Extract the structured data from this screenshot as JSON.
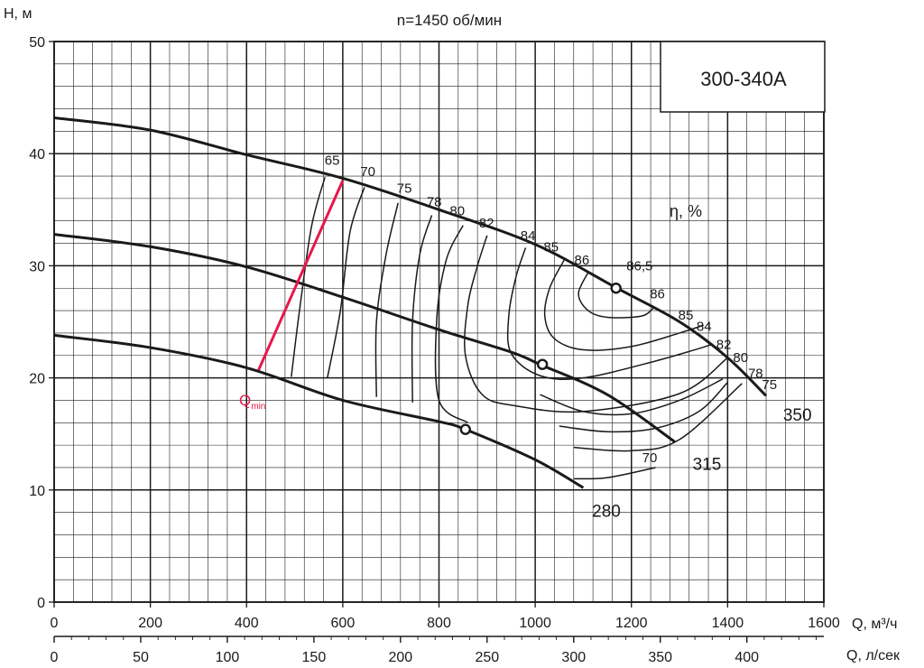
{
  "chart_data": {
    "type": "line",
    "title": "n=1450 об/мин",
    "model_label": "300-340А",
    "ylabel": "H, м",
    "xlabel": "Q, м³/ч",
    "xlabel2": "Q, л/сек",
    "efficiency_label": "η, %",
    "qmin_label": "Q",
    "qmin_sub": "min",
    "ylim": [
      0,
      50
    ],
    "xlim": [
      0,
      1600
    ],
    "x2lim": [
      0,
      444.44
    ],
    "grid": true,
    "x_ticks": [
      "0",
      "200",
      "400",
      "600",
      "800",
      "1000",
      "1200",
      "1400",
      "1600"
    ],
    "x2_ticks": [
      "0",
      "50",
      "100",
      "150",
      "200",
      "250",
      "300",
      "350",
      "400"
    ],
    "y_ticks": [
      "0",
      "10",
      "20",
      "30",
      "40",
      "50"
    ],
    "colors": {
      "curve": "#1a1a1a",
      "grid": "#1a1a1a",
      "qmin": "#e8174a"
    },
    "series": [
      {
        "name": "350",
        "points": [
          [
            0,
            43.2
          ],
          [
            200,
            42.1
          ],
          [
            400,
            39.9
          ],
          [
            600,
            37.8
          ],
          [
            800,
            35.0
          ],
          [
            1000,
            31.9
          ],
          [
            1170,
            28.0
          ],
          [
            1300,
            25.0
          ],
          [
            1400,
            21.8
          ],
          [
            1480,
            18.4
          ]
        ]
      },
      {
        "name": "315",
        "points": [
          [
            0,
            32.8
          ],
          [
            200,
            31.7
          ],
          [
            400,
            29.9
          ],
          [
            600,
            27.2
          ],
          [
            800,
            24.3
          ],
          [
            950,
            22.3
          ],
          [
            1010,
            21.2
          ],
          [
            1150,
            18.5
          ],
          [
            1290,
            14.3
          ]
        ]
      },
      {
        "name": "280",
        "points": [
          [
            0,
            23.8
          ],
          [
            200,
            22.7
          ],
          [
            400,
            20.9
          ],
          [
            600,
            18.0
          ],
          [
            800,
            16.1
          ],
          [
            855,
            15.4
          ],
          [
            1000,
            12.7
          ],
          [
            1100,
            10.2
          ]
        ]
      }
    ],
    "duty_points": [
      {
        "x": 1168,
        "y": 28.0
      },
      {
        "x": 1015,
        "y": 21.2
      },
      {
        "x": 855,
        "y": 15.4
      }
    ],
    "qmin_line": [
      [
        425,
        20.7
      ],
      [
        600,
        37.6
      ]
    ],
    "efficiency_curves": [
      {
        "label": "65",
        "points": [
          [
            563,
            37.9
          ],
          [
            535,
            33.5
          ],
          [
            510,
            26.0
          ],
          [
            493,
            20.1
          ]
        ]
      },
      {
        "label": "70",
        "points": [
          [
            645,
            37.0
          ],
          [
            615,
            33.0
          ],
          [
            595,
            26.0
          ],
          [
            568,
            20.0
          ]
        ]
      },
      {
        "label": "75",
        "points": [
          [
            715,
            35.6
          ],
          [
            690,
            31.0
          ],
          [
            670,
            25.0
          ],
          [
            670,
            18.3
          ]
        ]
      },
      {
        "label": "78",
        "points": [
          [
            785,
            34.5
          ],
          [
            760,
            31.0
          ],
          [
            745,
            25.0
          ],
          [
            745,
            17.8
          ]
        ]
      },
      {
        "label": "80",
        "points": [
          [
            850,
            33.6
          ],
          [
            815,
            30.5
          ],
          [
            795,
            25.0
          ],
          [
            800,
            18.0
          ],
          [
            860,
            16.0
          ]
        ]
      },
      {
        "label": "82",
        "points": [
          [
            900,
            32.7
          ],
          [
            880,
            30.0
          ],
          [
            860,
            26.5
          ],
          [
            855,
            22.0
          ],
          [
            890,
            18.5
          ],
          [
            960,
            17.5
          ],
          [
            1100,
            17.0
          ],
          [
            1300,
            18.6
          ],
          [
            1400,
            21.8
          ]
        ]
      },
      {
        "label": "84",
        "points": [
          [
            980,
            31.6
          ],
          [
            960,
            29.0
          ],
          [
            945,
            25.5
          ],
          [
            950,
            22.2
          ],
          [
            1010,
            20.2
          ],
          [
            1100,
            20.0
          ],
          [
            1250,
            21.5
          ],
          [
            1370,
            23.0
          ]
        ]
      },
      {
        "label": "85",
        "points": [
          [
            1060,
            30.5
          ],
          [
            1030,
            28.0
          ],
          [
            1020,
            25.5
          ],
          [
            1040,
            23.5
          ],
          [
            1100,
            22.5
          ],
          [
            1200,
            22.8
          ],
          [
            1300,
            24.0
          ],
          [
            1350,
            24.7
          ]
        ]
      },
      {
        "label": "86",
        "points": [
          [
            1110,
            29.4
          ],
          [
            1090,
            27.5
          ],
          [
            1110,
            26.0
          ],
          [
            1150,
            25.4
          ],
          [
            1220,
            25.5
          ],
          [
            1245,
            26.2
          ]
        ]
      },
      {
        "label": "80",
        "points": [
          [
            1010,
            18.5
          ],
          [
            1100,
            17.0
          ],
          [
            1200,
            16.8
          ],
          [
            1300,
            18.0
          ],
          [
            1390,
            19.9
          ]
        ]
      },
      {
        "label": "78",
        "points": [
          [
            1050,
            15.7
          ],
          [
            1150,
            15.2
          ],
          [
            1250,
            15.5
          ],
          [
            1340,
            17.0
          ],
          [
            1400,
            19.6
          ]
        ]
      },
      {
        "label": "75",
        "points": [
          [
            1080,
            13.8
          ],
          [
            1200,
            13.5
          ],
          [
            1300,
            14.5
          ],
          [
            1430,
            19.5
          ]
        ]
      },
      {
        "label": "70",
        "points": [
          [
            1080,
            11.0
          ],
          [
            1150,
            11.1
          ],
          [
            1250,
            12.0
          ]
        ]
      }
    ],
    "eff_labels": [
      {
        "text": "65",
        "x": 578,
        "y": 39
      },
      {
        "text": "70",
        "x": 652,
        "y": 38
      },
      {
        "text": "75",
        "x": 728,
        "y": 36.5
      },
      {
        "text": "78",
        "x": 790,
        "y": 35.3
      },
      {
        "text": "80",
        "x": 838,
        "y": 34.5
      },
      {
        "text": "82",
        "x": 899,
        "y": 33.4
      },
      {
        "text": "84",
        "x": 985,
        "y": 32.3
      },
      {
        "text": "85",
        "x": 1033,
        "y": 31.3
      },
      {
        "text": "86",
        "x": 1097,
        "y": 30.1
      },
      {
        "text": "86,5",
        "x": 1217,
        "y": 29.6
      },
      {
        "text": "86",
        "x": 1254,
        "y": 27.1
      },
      {
        "text": "85",
        "x": 1313,
        "y": 25.2
      },
      {
        "text": "84",
        "x": 1351,
        "y": 24.2
      },
      {
        "text": "82",
        "x": 1392,
        "y": 22.6
      },
      {
        "text": "80",
        "x": 1427,
        "y": 21.4
      },
      {
        "text": "78",
        "x": 1458,
        "y": 20.0
      },
      {
        "text": "75",
        "x": 1487,
        "y": 19.0
      },
      {
        "text": "70",
        "x": 1238,
        "y": 12.5
      }
    ],
    "curve_labels": [
      {
        "text": "350",
        "x": 1545,
        "y": 16.2
      },
      {
        "text": "315",
        "x": 1357,
        "y": 11.8
      },
      {
        "text": "280",
        "x": 1148,
        "y": 7.6
      }
    ]
  }
}
